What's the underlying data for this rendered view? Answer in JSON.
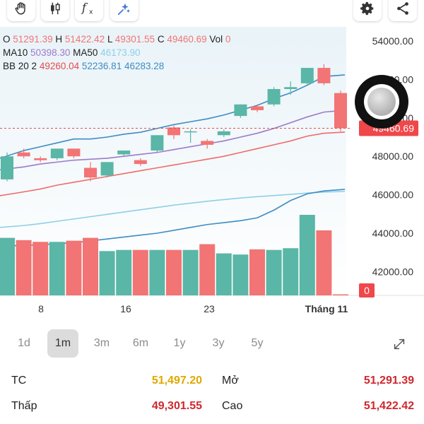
{
  "toolbar": {
    "left_tools": [
      "hand-icon",
      "candlestick-icon",
      "fx-icon",
      "sparkle-icon"
    ],
    "right_tools": [
      "gear-icon",
      "share-icon"
    ]
  },
  "ohlc": {
    "o_label": "O",
    "o_value": "51291.39",
    "h_label": "H",
    "h_value": "51422.42",
    "l_label": "L",
    "l_value": "49301.55",
    "c_label": "C",
    "c_value": "49460.69",
    "vol_label": "Vol",
    "vol_value": "0"
  },
  "ma": {
    "ma10_label": "MA10",
    "ma10_value": "50398.30",
    "ma50_label": "MA50",
    "ma50_value": "46173.90"
  },
  "bb": {
    "label": "BB 20 2",
    "v1": "49260.04",
    "v2": "52236.81",
    "v3": "46283.28"
  },
  "price_label": "49460.69",
  "volume_label": "0",
  "colors": {
    "up": "#5ab6a6",
    "down": "#f27474",
    "ma10": "#9d7ac8",
    "ma50": "#8ecfe8",
    "bb_upper": "#3e8cc4",
    "bb_lower": "#f06b6b",
    "gold": "#e0a800",
    "red": "#d0282e"
  },
  "chart_data": {
    "type": "candlestick",
    "y_ticks": [
      "54000.00",
      "52000.00",
      "50000.00",
      "48000.00",
      "46000.00",
      "44000.00",
      "42000.00"
    ],
    "x_ticks": [
      "8",
      "16",
      "23",
      "Tháng 11"
    ],
    "candles": [
      {
        "o": 46800,
        "c": 48000,
        "h": 48200,
        "l": 46700
      },
      {
        "o": 48200,
        "c": 48000,
        "h": 48400,
        "l": 47900
      },
      {
        "o": 47900,
        "c": 47800,
        "h": 48000,
        "l": 47700
      },
      {
        "o": 47900,
        "c": 48400,
        "h": 48400,
        "l": 47800
      },
      {
        "o": 48400,
        "c": 48000,
        "h": 48400,
        "l": 47900
      },
      {
        "o": 47400,
        "c": 46900,
        "h": 47700,
        "l": 46700
      },
      {
        "o": 47000,
        "c": 47700,
        "h": 47700,
        "l": 46900
      },
      {
        "o": 48100,
        "c": 48300,
        "h": 48300,
        "l": 48000
      },
      {
        "o": 47800,
        "c": 47600,
        "h": 47900,
        "l": 47500
      },
      {
        "o": 48300,
        "c": 49100,
        "h": 49100,
        "l": 48200
      },
      {
        "o": 49500,
        "c": 49100,
        "h": 49600,
        "l": 48900
      },
      {
        "o": 49300,
        "c": 49300,
        "h": 49400,
        "l": 48700
      },
      {
        "o": 48800,
        "c": 48600,
        "h": 48900,
        "l": 48400
      },
      {
        "o": 49100,
        "c": 49300,
        "h": 49400,
        "l": 49000
      },
      {
        "o": 50100,
        "c": 50700,
        "h": 50700,
        "l": 50000
      },
      {
        "o": 50600,
        "c": 50400,
        "h": 50700,
        "l": 50300
      },
      {
        "o": 50700,
        "c": 51500,
        "h": 51600,
        "l": 50600
      },
      {
        "o": 51500,
        "c": 51600,
        "h": 51900,
        "l": 51200
      },
      {
        "o": 51800,
        "c": 52600,
        "h": 52600,
        "l": 51700
      },
      {
        "o": 52600,
        "c": 51800,
        "h": 52800,
        "l": 51700
      },
      {
        "o": 51291.39,
        "c": 49460.69,
        "h": 51422.42,
        "l": 49301.55
      }
    ],
    "volumes": [
      100,
      96,
      93,
      93,
      95,
      100,
      77,
      79,
      79,
      79,
      79,
      79,
      89,
      73,
      71,
      80,
      79,
      82,
      140,
      113,
      0
    ],
    "ma10": [
      47300,
      47450,
      47600,
      47700,
      47800,
      47850,
      47900,
      48000,
      48100,
      48200,
      48350,
      48500,
      48650,
      48800,
      49000,
      49200,
      49450,
      49750,
      50050,
      50300,
      50398.3
    ],
    "bb_upper": [
      47900,
      48300,
      48500,
      48700,
      48900,
      48900,
      49000,
      49150,
      49250,
      49450,
      49650,
      49800,
      49950,
      50150,
      50400,
      50650,
      51000,
      51300,
      51700,
      52150,
      52236.81
    ],
    "bb_mid": [
      45950,
      46150,
      46300,
      46500,
      46650,
      46800,
      46950,
      47100,
      47250,
      47400,
      47550,
      47700,
      47850,
      48000,
      48200,
      48400,
      48600,
      48800,
      49050,
      49200,
      49260.04
    ],
    "ma50": [
      44300,
      44400,
      44500,
      44620,
      44740,
      44860,
      44980,
      45100,
      45220,
      45340,
      45460,
      45560,
      45660,
      45750,
      45830,
      45900,
      45960,
      46020,
      46090,
      46140,
      46173.9
    ],
    "bb_lower": [
      43350,
      43350,
      43400,
      43450,
      43500,
      43600,
      43700,
      43800,
      43900,
      44000,
      44150,
      44300,
      44450,
      44550,
      44650,
      44800,
      45200,
      45700,
      46050,
      46200,
      46283.28
    ]
  },
  "periods": {
    "items": [
      "1d",
      "1m",
      "3m",
      "6m",
      "1y",
      "3y",
      "5y"
    ],
    "active": "1m"
  },
  "stats": {
    "tc_label": "TC",
    "tc_value": "51,497.20",
    "mo_label": "Mở",
    "mo_value": "51,291.39",
    "thap_label": "Thấp",
    "thap_value": "49,301.55",
    "cao_label": "Cao",
    "cao_value": "51,422.42"
  }
}
